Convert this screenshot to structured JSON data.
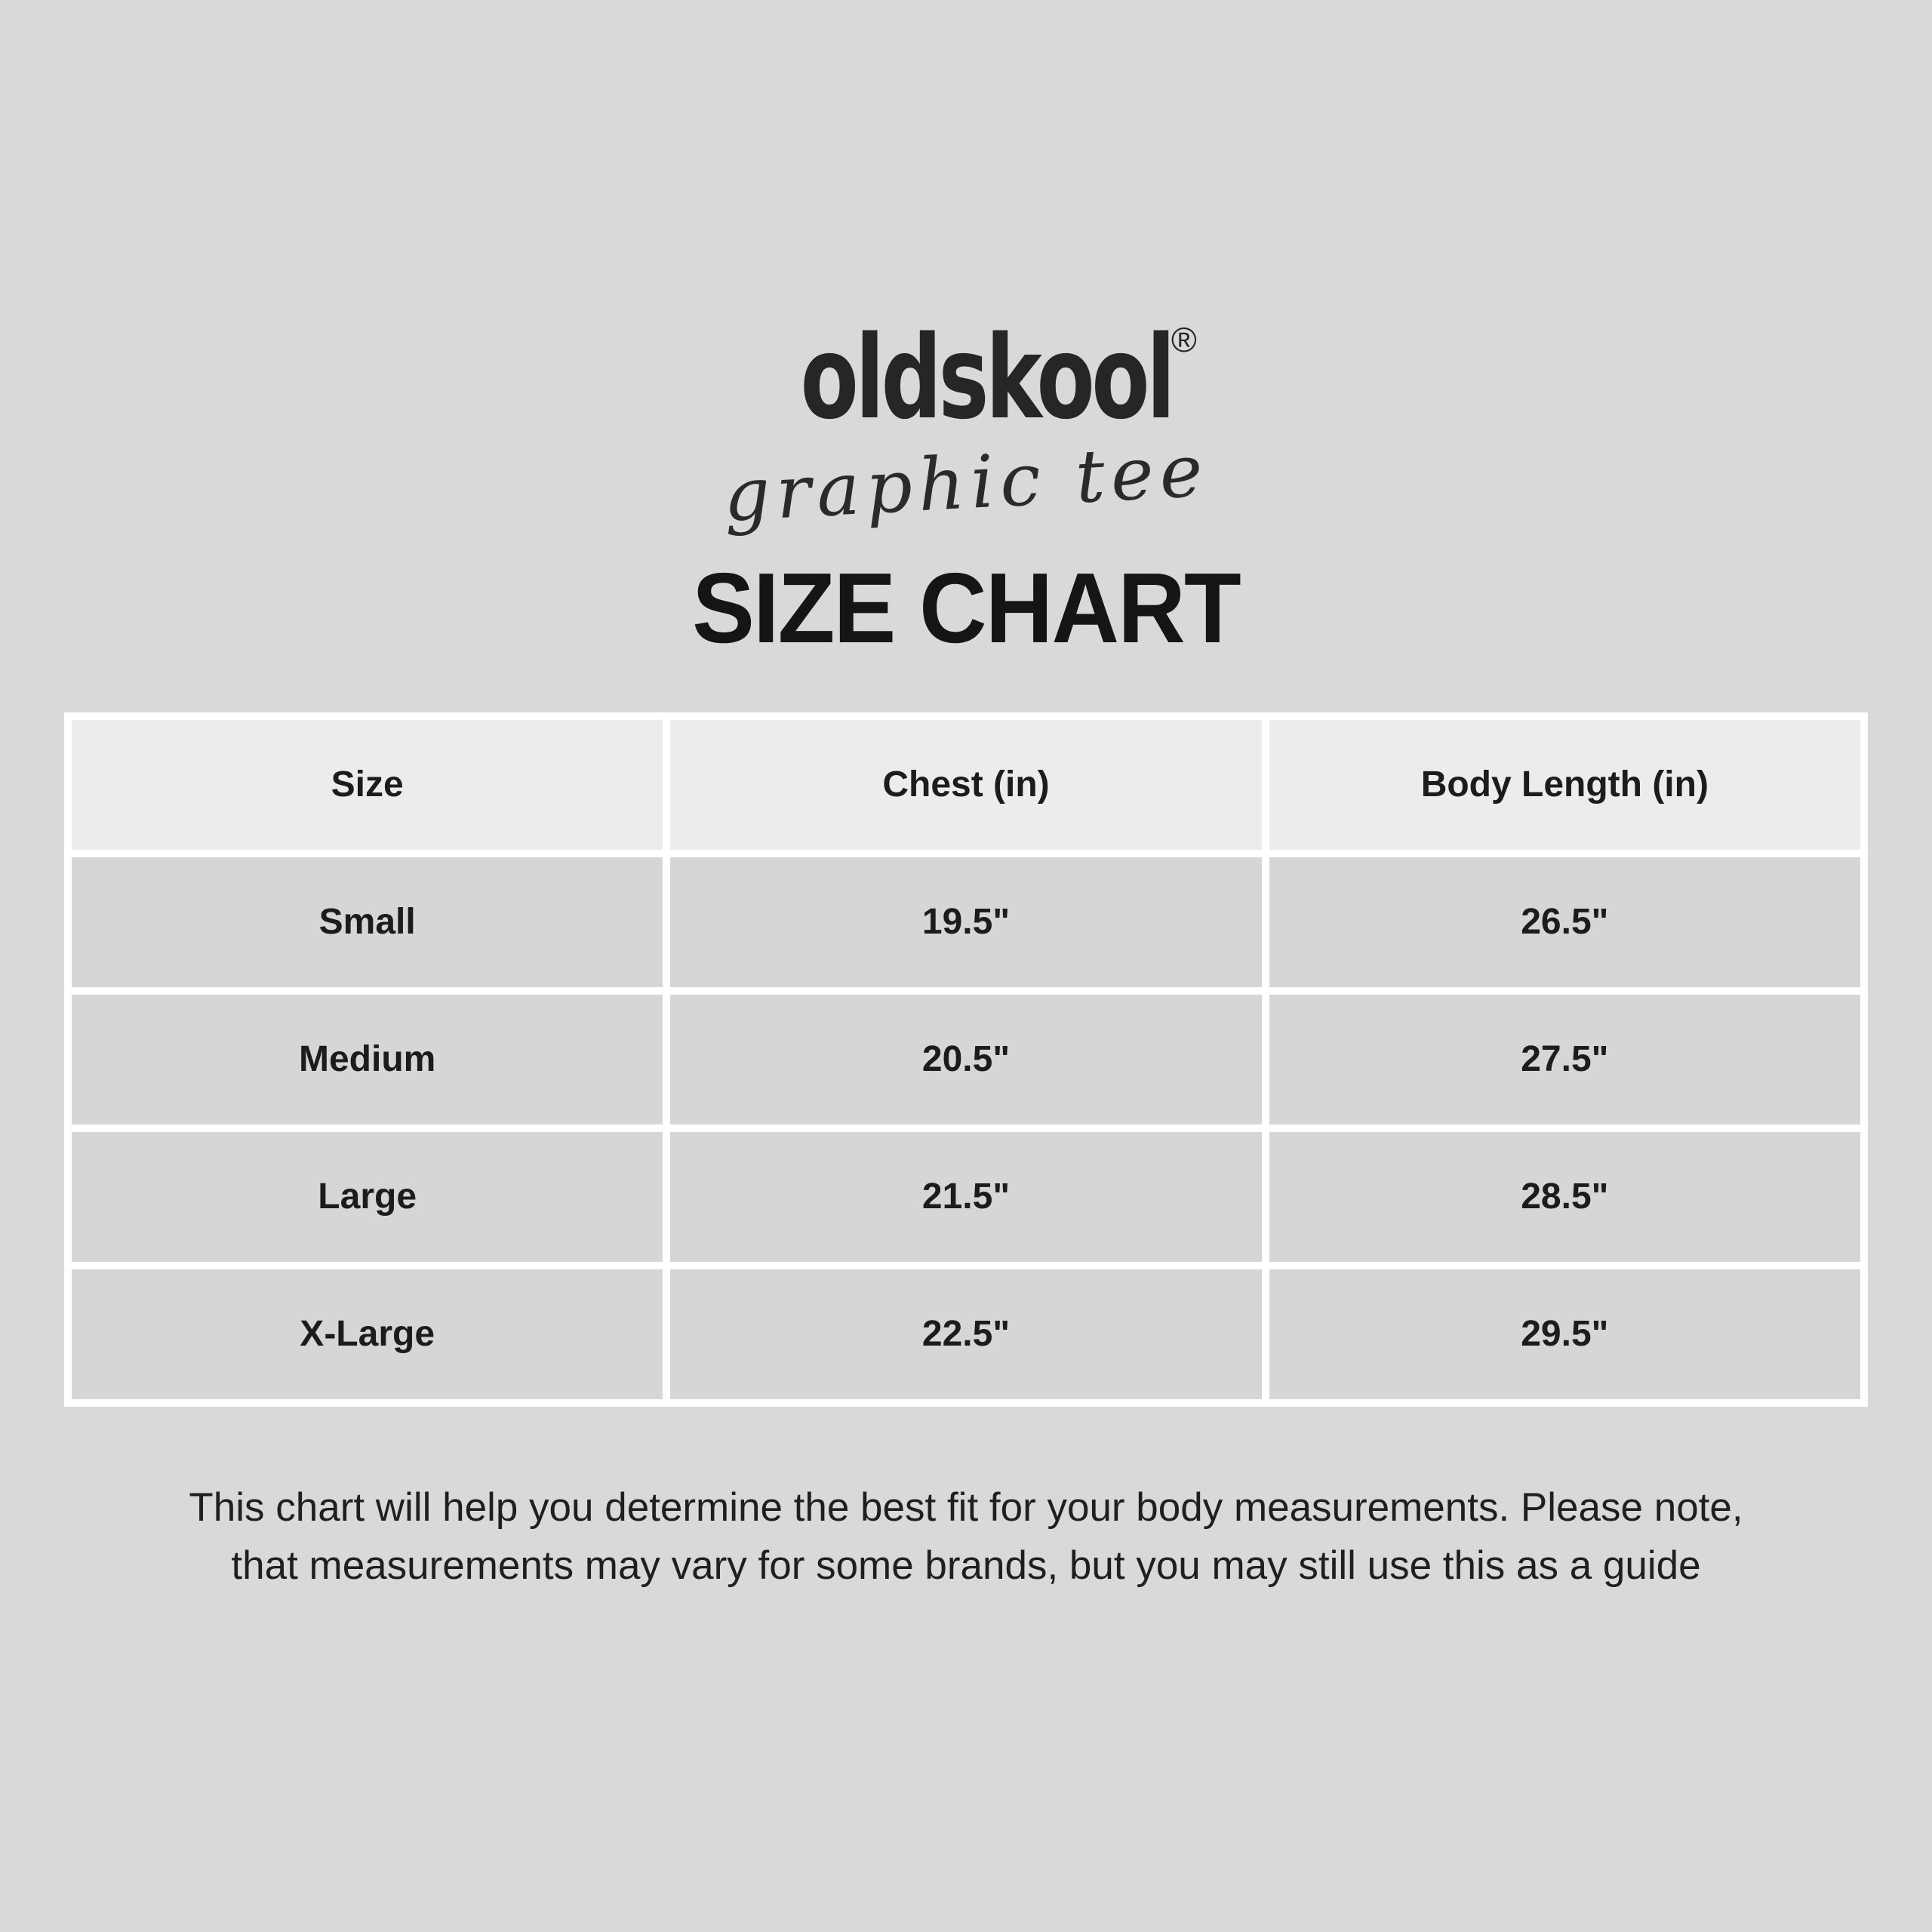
{
  "brand": {
    "wordmark": "oldskool",
    "registered_mark": "®",
    "tagline": "graphic tee"
  },
  "chart_data": {
    "type": "table",
    "title": "SIZE CHART",
    "columns": [
      "Size",
      "Chest (in)",
      "Body Length (in)"
    ],
    "rows": [
      [
        "Small",
        "19.5\"",
        "26.5\""
      ],
      [
        "Medium",
        "20.5\"",
        "27.5\""
      ],
      [
        "Large",
        "21.5\"",
        "28.5\""
      ],
      [
        "X-Large",
        "22.5\"",
        "29.5\""
      ]
    ]
  },
  "footer": {
    "line1": "This chart will help you determine the best fit for your body measurements. Please note,",
    "line2": "that measurements may vary for some brands, but you may still use this as a guide"
  },
  "colors": {
    "page_background": "#d9d9d9",
    "table_frame": "#ffffff",
    "header_cell": "#ececec",
    "data_cell": "#d6d6d6",
    "text": "#1c1c1c"
  }
}
